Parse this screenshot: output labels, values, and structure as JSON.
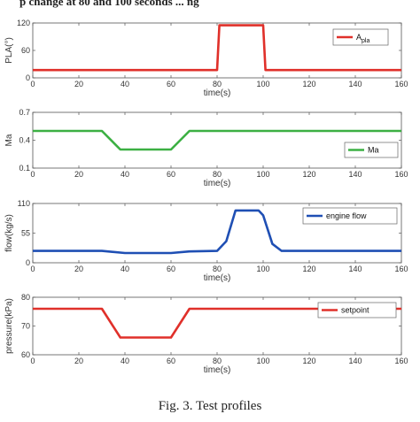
{
  "header_text": "p change at 80 and 100 seconds ... ng",
  "caption": "Fig. 3.   Test profiles",
  "chart_data": [
    {
      "type": "line",
      "xlabel": "time(s)",
      "ylabel": "PLA(°)",
      "xlim": [
        0,
        160
      ],
      "ylim": [
        0,
        120
      ],
      "xticks": [
        0,
        20,
        40,
        60,
        80,
        100,
        120,
        140,
        160
      ],
      "yticks": [
        0,
        60,
        120
      ],
      "grid": false,
      "legend_position": "top-right",
      "series": [
        {
          "name": "A",
          "name_sub": "pla",
          "color": "#e0302a",
          "x": [
            0,
            80,
            81,
            100,
            101,
            160
          ],
          "y": [
            17,
            17,
            115,
            115,
            17,
            17
          ]
        }
      ]
    },
    {
      "type": "line",
      "xlabel": "time(s)",
      "ylabel": "Ma",
      "xlim": [
        0,
        160
      ],
      "ylim": [
        0.1,
        0.7
      ],
      "xticks": [
        0,
        20,
        40,
        60,
        80,
        100,
        120,
        140,
        160
      ],
      "yticks": [
        0.1,
        0.4,
        0.7
      ],
      "grid": false,
      "legend_position": "bottom-right",
      "series": [
        {
          "name": "Ma",
          "color": "#3cb043",
          "x": [
            0,
            30,
            38,
            60,
            68,
            160
          ],
          "y": [
            0.5,
            0.5,
            0.3,
            0.3,
            0.5,
            0.5
          ]
        }
      ]
    },
    {
      "type": "line",
      "xlabel": "time(s)",
      "ylabel": "flow(kg/s)",
      "xlim": [
        0,
        160
      ],
      "ylim": [
        0,
        110
      ],
      "xticks": [
        0,
        20,
        40,
        60,
        80,
        100,
        120,
        140,
        160
      ],
      "yticks": [
        0,
        55,
        110
      ],
      "grid": false,
      "legend_position": "top-right",
      "series": [
        {
          "name": "engine flow",
          "color": "#1f4fb4",
          "x": [
            0,
            30,
            40,
            60,
            68,
            80,
            84,
            88,
            98,
            100,
            104,
            108,
            160
          ],
          "y": [
            22,
            22,
            18,
            18,
            21,
            22,
            40,
            97,
            97,
            88,
            35,
            22,
            22
          ]
        }
      ]
    },
    {
      "type": "line",
      "xlabel": "time(s)",
      "ylabel": "pressure(kPa)",
      "xlim": [
        0,
        160
      ],
      "ylim": [
        60,
        80
      ],
      "xticks": [
        0,
        20,
        40,
        60,
        80,
        100,
        120,
        140,
        160
      ],
      "yticks": [
        60,
        70,
        80
      ],
      "grid": false,
      "legend_position": "top-right",
      "series": [
        {
          "name": "setpoint",
          "color": "#e0302a",
          "x": [
            0,
            30,
            38,
            60,
            68,
            160
          ],
          "y": [
            76,
            76,
            66,
            66,
            76,
            76
          ]
        }
      ]
    }
  ]
}
